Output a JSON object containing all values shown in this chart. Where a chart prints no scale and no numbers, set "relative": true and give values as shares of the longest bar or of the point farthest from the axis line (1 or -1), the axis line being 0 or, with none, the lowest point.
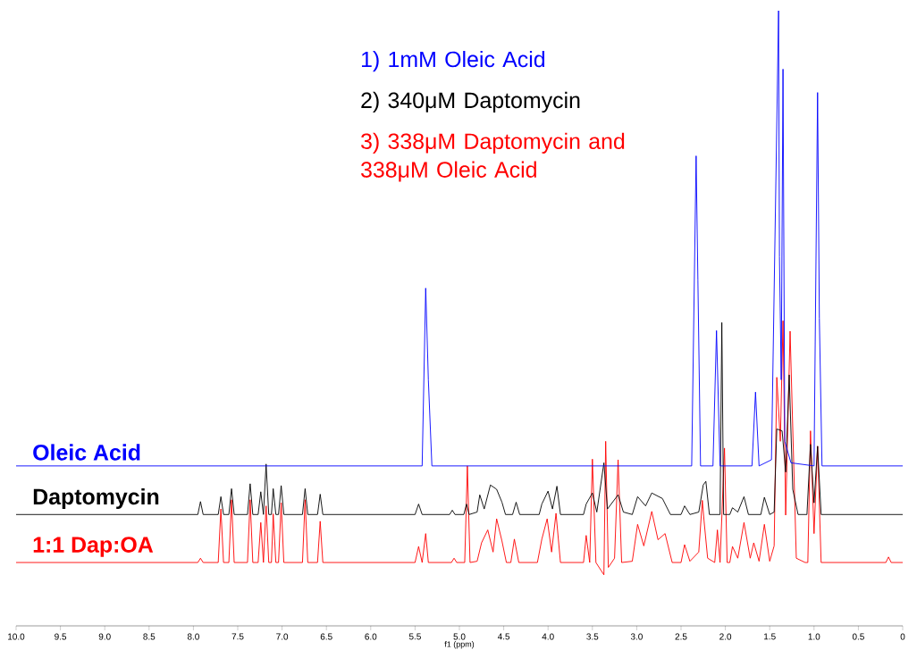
{
  "chart_data": {
    "type": "line",
    "relative": true,
    "xlabel": "f1 (ppm)",
    "xlim": [
      10,
      0
    ],
    "xticks": [
      {
        "value": 10,
        "label": "10.0"
      },
      {
        "value": 9.5,
        "label": "9.5"
      },
      {
        "value": 9,
        "label": "9.0"
      },
      {
        "value": 8.5,
        "label": "8.5"
      },
      {
        "value": 8,
        "label": "8.0"
      },
      {
        "value": 7.5,
        "label": "7.5"
      },
      {
        "value": 7,
        "label": "7.0"
      },
      {
        "value": 6.5,
        "label": "6.5"
      },
      {
        "value": 6,
        "label": "6.0"
      },
      {
        "value": 5.5,
        "label": "5.5"
      },
      {
        "value": 5,
        "label": "5.0"
      },
      {
        "value": 4.5,
        "label": "4.5"
      },
      {
        "value": 4,
        "label": "4.0"
      },
      {
        "value": 3.5,
        "label": "3.5"
      },
      {
        "value": 3,
        "label": "3.0"
      },
      {
        "value": 2.5,
        "label": "2.5"
      },
      {
        "value": 2,
        "label": "2.0"
      },
      {
        "value": 1.5,
        "label": "1.5"
      },
      {
        "value": 1,
        "label": "1.0"
      },
      {
        "value": 0.5,
        "label": "0.5"
      },
      {
        "value": 0,
        "label": "0"
      }
    ],
    "annotations": [
      "1) 1mM Oleic Acid",
      "2) 340μM Daptomycin",
      "3) 338μM Daptomycin and 338μM Oleic Acid"
    ],
    "series": [
      {
        "name": "Oleic Acid",
        "color": "#0000ff",
        "x": [
          10,
          5.42,
          5.38,
          5.35,
          5.31,
          2.38,
          2.33,
          2.31,
          2.28,
          2.14,
          2.1,
          2.06,
          1.7,
          1.66,
          1.62,
          1.48,
          1.4,
          1.39,
          1.37,
          1.35,
          1.33,
          1.26,
          1.0,
          0.96,
          0.94,
          0.91,
          0
        ],
        "values": [
          0.26,
          0.26,
          0.549,
          0.4,
          0.26,
          0.26,
          0.764,
          0.562,
          0.26,
          0.26,
          0.48,
          0.26,
          0.26,
          0.38,
          0.26,
          0.27,
          1.0,
          0.6,
          0.4,
          0.905,
          0.3,
          0.265,
          0.26,
          0.867,
          0.5,
          0.26,
          0.26
        ]
      },
      {
        "name": "Daptomycin",
        "color": "#000000",
        "x": [
          10,
          7.95,
          7.92,
          7.89,
          7.72,
          7.69,
          7.66,
          7.6,
          7.57,
          7.54,
          7.39,
          7.36,
          7.33,
          7.27,
          7.24,
          7.21,
          7.18,
          7.15,
          7.12,
          7.1,
          7.07,
          7.04,
          7.01,
          6.98,
          6.77,
          6.74,
          6.71,
          6.6,
          6.57,
          6.54,
          5.5,
          5.46,
          5.42,
          5.11,
          5.08,
          5.05,
          4.95,
          4.92,
          4.89,
          4.8,
          4.77,
          4.72,
          4.65,
          4.58,
          4.52,
          4.48,
          4.4,
          4.36,
          4.32,
          4.1,
          4.07,
          4.0,
          3.95,
          3.9,
          3.86,
          3.6,
          3.57,
          3.5,
          3.45,
          3.37,
          3.33,
          3.21,
          3.15,
          3.05,
          2.99,
          2.9,
          2.83,
          2.71,
          2.62,
          2.5,
          2.46,
          2.4,
          2.3,
          2.25,
          2.22,
          2.18,
          2.06,
          2.04,
          2.02,
          1.95,
          1.92,
          1.86,
          1.79,
          1.74,
          1.6,
          1.56,
          1.5,
          1.45,
          1.42,
          1.36,
          1.32,
          1.28,
          1.24,
          1.18,
          1.08,
          1.04,
          1.0,
          0.96,
          0.92,
          0
        ],
        "values": [
          0.181,
          0.181,
          0.202,
          0.181,
          0.181,
          0.21,
          0.181,
          0.181,
          0.223,
          0.181,
          0.181,
          0.231,
          0.181,
          0.181,
          0.218,
          0.181,
          0.263,
          0.181,
          0.181,
          0.223,
          0.181,
          0.181,
          0.228,
          0.181,
          0.181,
          0.223,
          0.181,
          0.181,
          0.214,
          0.181,
          0.181,
          0.198,
          0.181,
          0.181,
          0.188,
          0.181,
          0.181,
          0.198,
          0.181,
          0.185,
          0.213,
          0.19,
          0.229,
          0.222,
          0.201,
          0.181,
          0.181,
          0.201,
          0.181,
          0.181,
          0.198,
          0.219,
          0.19,
          0.227,
          0.181,
          0.181,
          0.198,
          0.216,
          0.185,
          0.265,
          0.19,
          0.213,
          0.185,
          0.181,
          0.21,
          0.195,
          0.216,
          0.207,
          0.181,
          0.181,
          0.195,
          0.181,
          0.185,
          0.229,
          0.235,
          0.181,
          0.181,
          0.493,
          0.181,
          0.181,
          0.192,
          0.185,
          0.21,
          0.181,
          0.181,
          0.209,
          0.181,
          0.185,
          0.32,
          0.317,
          0.25,
          0.408,
          0.222,
          0.181,
          0.181,
          0.295,
          0.2,
          0.292,
          0.181,
          0.181
        ]
      },
      {
        "name": "1:1 Dap:OA",
        "color": "#ff0000",
        "x": [
          10,
          7.95,
          7.92,
          7.89,
          7.72,
          7.69,
          7.66,
          7.6,
          7.57,
          7.54,
          7.39,
          7.36,
          7.33,
          7.27,
          7.24,
          7.21,
          7.18,
          7.15,
          7.12,
          7.1,
          7.07,
          7.04,
          7.01,
          6.98,
          6.77,
          6.74,
          6.71,
          6.6,
          6.57,
          6.54,
          5.5,
          5.46,
          5.42,
          5.38,
          5.35,
          5.09,
          5.06,
          5.03,
          4.94,
          4.91,
          4.88,
          4.8,
          4.75,
          4.68,
          4.62,
          4.58,
          4.52,
          4.47,
          4.42,
          4.38,
          4.33,
          4.12,
          4.07,
          4.01,
          3.96,
          3.91,
          3.86,
          3.6,
          3.57,
          3.53,
          3.5,
          3.46,
          3.37,
          3.35,
          3.32,
          3.25,
          3.21,
          3.17,
          3.05,
          2.99,
          2.92,
          2.83,
          2.76,
          2.68,
          2.6,
          2.5,
          2.46,
          2.4,
          2.3,
          2.26,
          2.24,
          2.2,
          2.12,
          2.09,
          2.06,
          2.01,
          1.98,
          1.95,
          1.92,
          1.86,
          1.79,
          1.72,
          1.68,
          1.62,
          1.56,
          1.5,
          1.45,
          1.42,
          1.38,
          1.35,
          1.32,
          1.27,
          1.2,
          1.1,
          1.07,
          1.04,
          1.0,
          0.96,
          0.92,
          0.19,
          0.16,
          0.13,
          0
        ],
        "values": [
          0.103,
          0.103,
          0.11,
          0.103,
          0.103,
          0.19,
          0.103,
          0.103,
          0.205,
          0.103,
          0.103,
          0.205,
          0.103,
          0.103,
          0.168,
          0.103,
          0.195,
          0.103,
          0.103,
          0.182,
          0.103,
          0.103,
          0.2,
          0.103,
          0.103,
          0.205,
          0.103,
          0.103,
          0.17,
          0.103,
          0.103,
          0.129,
          0.103,
          0.15,
          0.103,
          0.103,
          0.11,
          0.103,
          0.103,
          0.26,
          0.103,
          0.105,
          0.135,
          0.156,
          0.12,
          0.174,
          0.138,
          0.103,
          0.103,
          0.141,
          0.103,
          0.103,
          0.141,
          0.174,
          0.12,
          0.183,
          0.103,
          0.103,
          0.147,
          0.103,
          0.271,
          0.103,
          0.083,
          0.3,
          0.095,
          0.11,
          0.27,
          0.103,
          0.105,
          0.165,
          0.13,
          0.186,
          0.14,
          0.15,
          0.103,
          0.103,
          0.132,
          0.105,
          0.12,
          0.204,
          0.17,
          0.11,
          0.103,
          0.156,
          0.103,
          0.289,
          0.103,
          0.103,
          0.129,
          0.11,
          0.168,
          0.11,
          0.135,
          0.105,
          0.165,
          0.105,
          0.13,
          0.404,
          0.3,
          0.496,
          0.18,
          0.479,
          0.11,
          0.103,
          0.103,
          0.317,
          0.15,
          0.292,
          0.103,
          0.103,
          0.112,
          0.103,
          0.103
        ]
      }
    ]
  }
}
